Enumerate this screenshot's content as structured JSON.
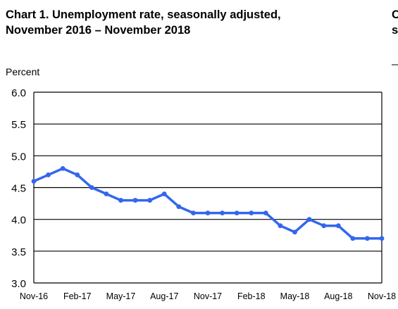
{
  "chart_data": {
    "type": "line",
    "title_line1": "Chart 1. Unemployment rate, seasonally adjusted,",
    "title_line2": "November 2016 – November 2018",
    "clipped_text_1": "C",
    "clipped_text_2": "s",
    "ylabel": "Percent",
    "ylim": [
      3.0,
      6.0
    ],
    "yticks": [
      "6.0",
      "5.5",
      "5.0",
      "4.5",
      "4.0",
      "3.5",
      "3.0"
    ],
    "xtick_labels": [
      "Nov-16",
      "Feb-17",
      "May-17",
      "Aug-17",
      "Nov-17",
      "Feb-18",
      "May-18",
      "Aug-18",
      "Nov-18"
    ],
    "x": [
      "Nov-16",
      "Dec-16",
      "Jan-17",
      "Feb-17",
      "Mar-17",
      "Apr-17",
      "May-17",
      "Jun-17",
      "Jul-17",
      "Aug-17",
      "Sep-17",
      "Oct-17",
      "Nov-17",
      "Dec-17",
      "Jan-18",
      "Feb-18",
      "Mar-18",
      "Apr-18",
      "May-18",
      "Jun-18",
      "Jul-18",
      "Aug-18",
      "Sep-18",
      "Oct-18",
      "Nov-18"
    ],
    "values": [
      4.6,
      4.7,
      4.8,
      4.7,
      4.5,
      4.4,
      4.3,
      4.3,
      4.3,
      4.4,
      4.2,
      4.1,
      4.1,
      4.1,
      4.1,
      4.1,
      4.1,
      3.9,
      3.8,
      4.0,
      3.9,
      3.9,
      3.7,
      3.7,
      3.7
    ],
    "line_color": "#3366ee",
    "grid": true,
    "legend": "none"
  }
}
